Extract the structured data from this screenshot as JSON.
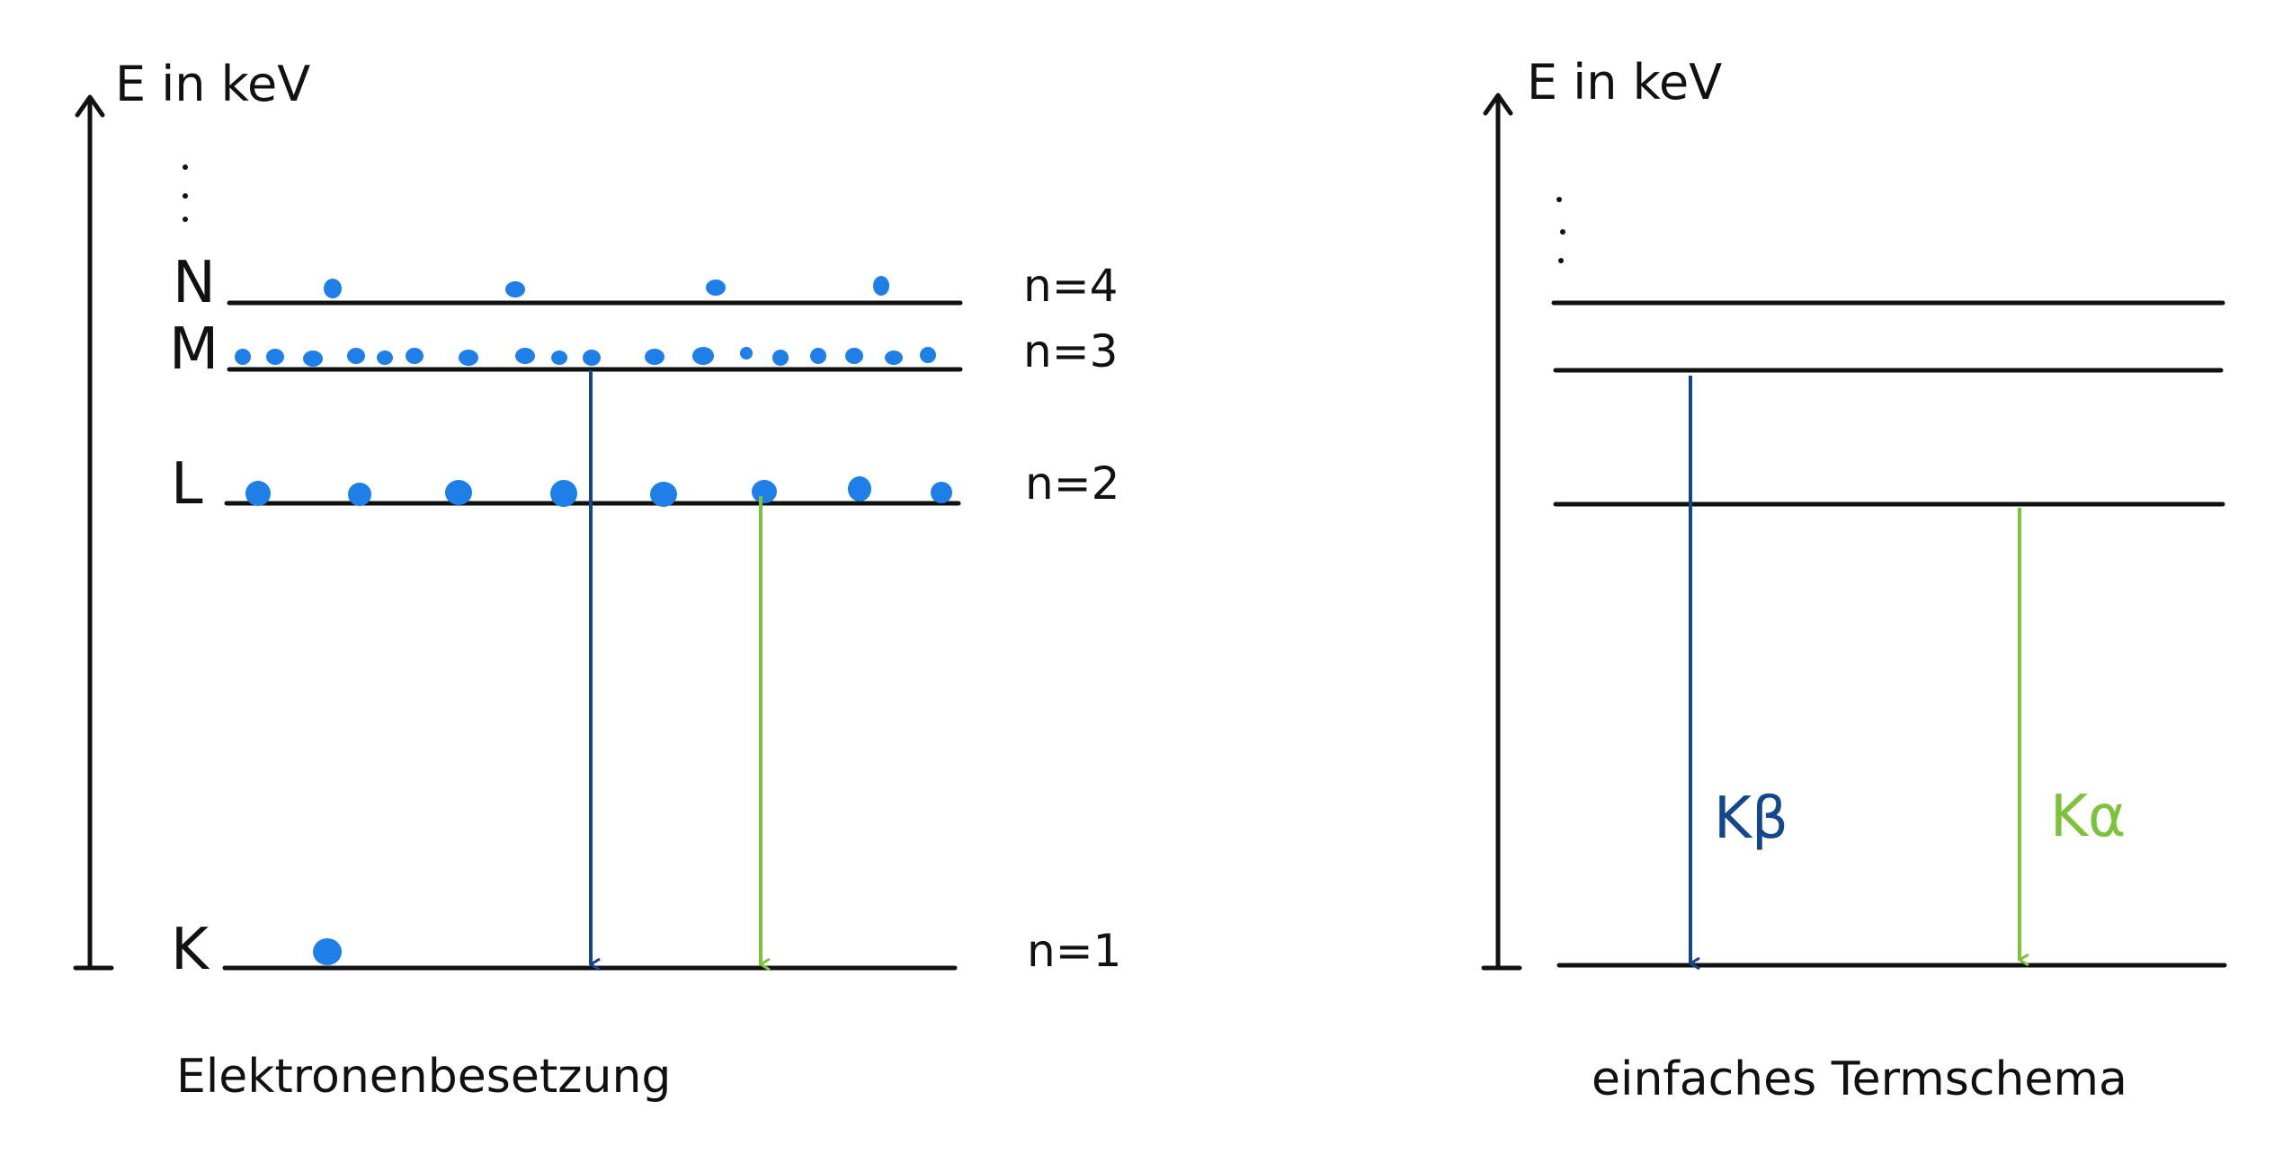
{
  "colors": {
    "ink": "#111111",
    "electron": "#1f7fe8",
    "k_beta": "#14468c",
    "k_alpha": "#7cc23a"
  },
  "left_diagram": {
    "axis_label": "E in keV",
    "caption": "Elektronenbesetzung",
    "levels": [
      {
        "shell": "N",
        "n_label": "n=4",
        "electrons": 4
      },
      {
        "shell": "M",
        "n_label": "n=3",
        "electrons": 18
      },
      {
        "shell": "L",
        "n_label": "n=2",
        "electrons": 8
      },
      {
        "shell": "K",
        "n_label": "n=1",
        "electrons": 1
      }
    ]
  },
  "right_diagram": {
    "axis_label": "E in keV",
    "caption": "einfaches Termschema",
    "transitions": [
      {
        "label": "Kβ",
        "from": "M",
        "to": "K",
        "color_key": "k_beta"
      },
      {
        "label": "Kα",
        "from": "L",
        "to": "K",
        "color_key": "k_alpha"
      }
    ]
  }
}
